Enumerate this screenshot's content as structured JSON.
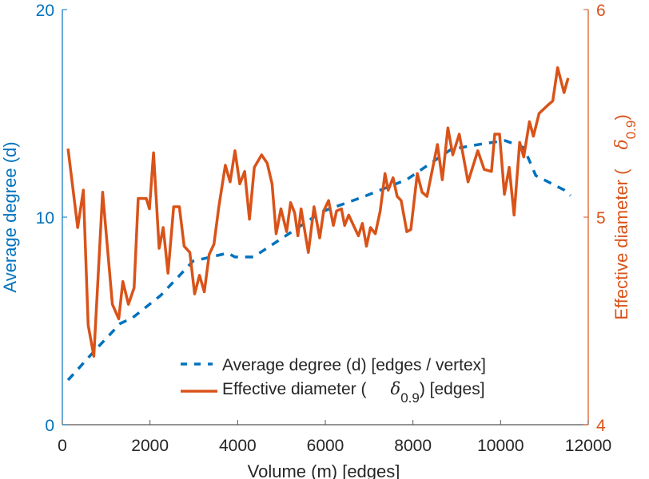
{
  "chart_data": {
    "type": "line",
    "xlabel": "Volume (m) [edges]",
    "ylabel_left": "Average degree (d)",
    "ylabel_right": "Effective diameter (",
    "ylabel_right_symbol": "δ",
    "ylabel_right_sub": "0.9",
    "ylabel_right_close": ")",
    "xlim": [
      0,
      12000
    ],
    "ylim_left": [
      0,
      20
    ],
    "ylim_right": [
      4,
      6
    ],
    "xticks": [
      "0",
      "2000",
      "4000",
      "6000",
      "8000",
      "10000",
      "12000"
    ],
    "yticks_left": [
      "0",
      "10",
      "20"
    ],
    "yticks_right": [
      "4",
      "5",
      "6"
    ],
    "colors": {
      "left": "#0072BD",
      "right": "#D95319",
      "axis": "#555555"
    },
    "legend": {
      "placement": "bottom-center",
      "entries": [
        {
          "label": "Average degree (d) [edges / vertex]"
        },
        {
          "label_pre": "Effective diameter (",
          "symbol": "δ",
          "sub": "0.9",
          "label_post": ") [edges]"
        }
      ]
    },
    "series": [
      {
        "name": "Average degree (d) [edges / vertex]",
        "axis": "left",
        "style": "dashed",
        "x": [
          129,
          773,
          1325,
          1601,
          2245,
          2982,
          3773,
          3939,
          4362,
          5190,
          5927,
          6847,
          7860,
          8872,
          9608,
          10105,
          10528,
          10804,
          11448,
          11596
        ],
        "y": [
          2.15,
          3.65,
          4.88,
          5.15,
          6.23,
          7.88,
          8.27,
          8.08,
          8.08,
          9.23,
          10.27,
          10.96,
          11.81,
          13.27,
          13.54,
          13.69,
          13.35,
          12.0,
          11.31,
          11.04
        ]
      },
      {
        "name": "Effective diameter (δ0.9) [edges]",
        "axis": "right",
        "style": "solid",
        "x": [
          129,
          350,
          479,
          589,
          718,
          920,
          1141,
          1288,
          1380,
          1509,
          1638,
          1730,
          1914,
          1988,
          2080,
          2209,
          2301,
          2411,
          2540,
          2669,
          2779,
          2908,
          3018,
          3129,
          3239,
          3350,
          3460,
          3570,
          3718,
          3828,
          3939,
          4049,
          4160,
          4270,
          4381,
          4546,
          4675,
          4786,
          4878,
          4988,
          5117,
          5209,
          5301,
          5375,
          5448,
          5614,
          5743,
          5872,
          5964,
          6074,
          6184,
          6258,
          6368,
          6442,
          6534,
          6644,
          6755,
          6847,
          6939,
          7031,
          7142,
          7252,
          7363,
          7436,
          7547,
          7639,
          7731,
          7860,
          7952,
          8099,
          8209,
          8320,
          8559,
          8669,
          8798,
          8909,
          9056,
          9258,
          9479,
          9626,
          9792,
          9866,
          9976,
          10087,
          10197,
          10307,
          10436,
          10528,
          10657,
          10749,
          10878,
          11080,
          11191,
          11301,
          11448,
          11541
        ],
        "y": [
          5.33,
          4.95,
          5.13,
          4.48,
          4.33,
          5.12,
          4.58,
          4.51,
          4.69,
          4.58,
          4.66,
          5.09,
          5.09,
          5.04,
          5.31,
          4.85,
          4.95,
          4.73,
          5.05,
          5.05,
          4.86,
          4.83,
          4.63,
          4.72,
          4.64,
          4.82,
          4.87,
          5.05,
          5.25,
          5.17,
          5.32,
          5.16,
          5.22,
          4.99,
          5.24,
          5.3,
          5.26,
          5.16,
          4.92,
          5.04,
          4.93,
          5.07,
          5.02,
          4.91,
          5.04,
          4.83,
          5.05,
          4.9,
          5.03,
          5.08,
          4.96,
          5.03,
          5.04,
          4.96,
          5.01,
          4.96,
          4.91,
          4.97,
          4.86,
          4.95,
          4.92,
          5.03,
          5.21,
          5.13,
          5.19,
          5.1,
          5.08,
          4.93,
          4.94,
          5.21,
          5.12,
          5.1,
          5.35,
          5.18,
          5.43,
          5.3,
          5.4,
          5.17,
          5.32,
          5.23,
          5.22,
          5.4,
          5.4,
          5.11,
          5.24,
          5.01,
          5.36,
          5.29,
          5.46,
          5.39,
          5.5,
          5.54,
          5.56,
          5.72,
          5.6,
          5.67
        ]
      }
    ]
  }
}
